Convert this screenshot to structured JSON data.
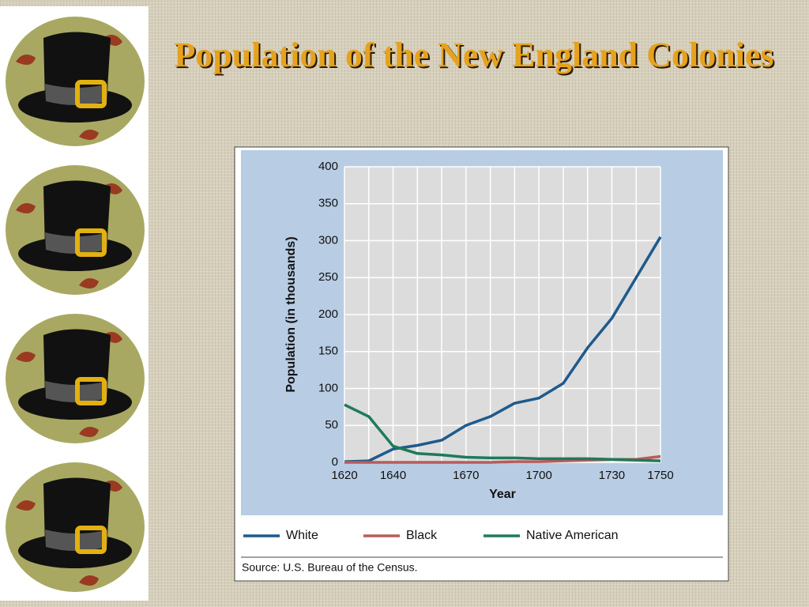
{
  "chart_data": {
    "type": "line",
    "title": "Population of the New England Colonies",
    "y_label": "Population (in thousands)",
    "x_label": "Year",
    "source": "Source: U.S. Bureau of the Census.",
    "x": [
      1620,
      1630,
      1640,
      1650,
      1660,
      1670,
      1680,
      1690,
      1700,
      1710,
      1720,
      1730,
      1740,
      1750
    ],
    "series": [
      {
        "name": "White",
        "color": "#1f5a8c",
        "values": [
          1,
          2,
          18,
          23,
          30,
          50,
          62,
          80,
          87,
          107,
          155,
          195,
          250,
          305
        ]
      },
      {
        "name": "Black",
        "color": "#b85c5c",
        "values": [
          0,
          0,
          0,
          0,
          0,
          0,
          0,
          1,
          1,
          2,
          3,
          4,
          4,
          8
        ]
      },
      {
        "name": "Native American",
        "color": "#1e7a5a",
        "values": [
          78,
          62,
          22,
          12,
          10,
          7,
          6,
          6,
          5,
          5,
          5,
          4,
          3,
          2
        ]
      }
    ],
    "xlim": [
      1620,
      1750
    ],
    "xticks": [
      1620,
      1640,
      1670,
      1700,
      1730,
      1750
    ],
    "ylim": [
      0,
      400
    ],
    "yticks": [
      0,
      50,
      100,
      150,
      200,
      250,
      300,
      350,
      400
    ],
    "grid": true
  }
}
